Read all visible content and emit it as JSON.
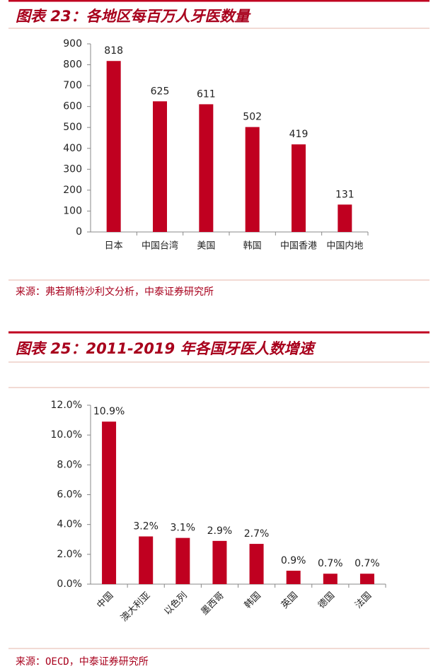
{
  "chart_data": [
    {
      "type": "bar",
      "title": "图表 23：各地区每百万人牙医数量",
      "categories": [
        "日本",
        "中国台湾",
        "美国",
        "韩国",
        "中国香港",
        "中国内地"
      ],
      "values": [
        818,
        625,
        611,
        502,
        419,
        131
      ],
      "color": "#c00020",
      "ylim": [
        0,
        900
      ],
      "yticks": [
        0,
        100,
        200,
        300,
        400,
        500,
        600,
        700,
        800,
        900
      ],
      "source": "来源：弗若斯特沙利文分析，中泰证券研究所"
    },
    {
      "type": "bar",
      "title": "图表 25：2011-2019 年各国牙医人数增速",
      "categories": [
        "中国",
        "澳大利亚",
        "以色列",
        "墨西哥",
        "韩国",
        "英国",
        "德国",
        "法国"
      ],
      "values": [
        10.9,
        3.2,
        3.1,
        2.9,
        2.7,
        0.9,
        0.7,
        0.7
      ],
      "value_labels": [
        "10.9%",
        "3.2%",
        "3.1%",
        "2.9%",
        "2.7%",
        "0.9%",
        "0.7%",
        "0.7%"
      ],
      "color": "#c00020",
      "ylim": [
        0,
        12
      ],
      "yticks": [
        {
          "value": 0,
          "label": "0.0%"
        },
        {
          "value": 2,
          "label": "2.0%"
        },
        {
          "value": 4,
          "label": "4.0%"
        },
        {
          "value": 6,
          "label": "6.0%"
        },
        {
          "value": 8,
          "label": "8.0%"
        },
        {
          "value": 10,
          "label": "10.0%"
        },
        {
          "value": 12,
          "label": "12.0%"
        }
      ],
      "source": "来源：OECD，中泰证券研究所"
    }
  ]
}
